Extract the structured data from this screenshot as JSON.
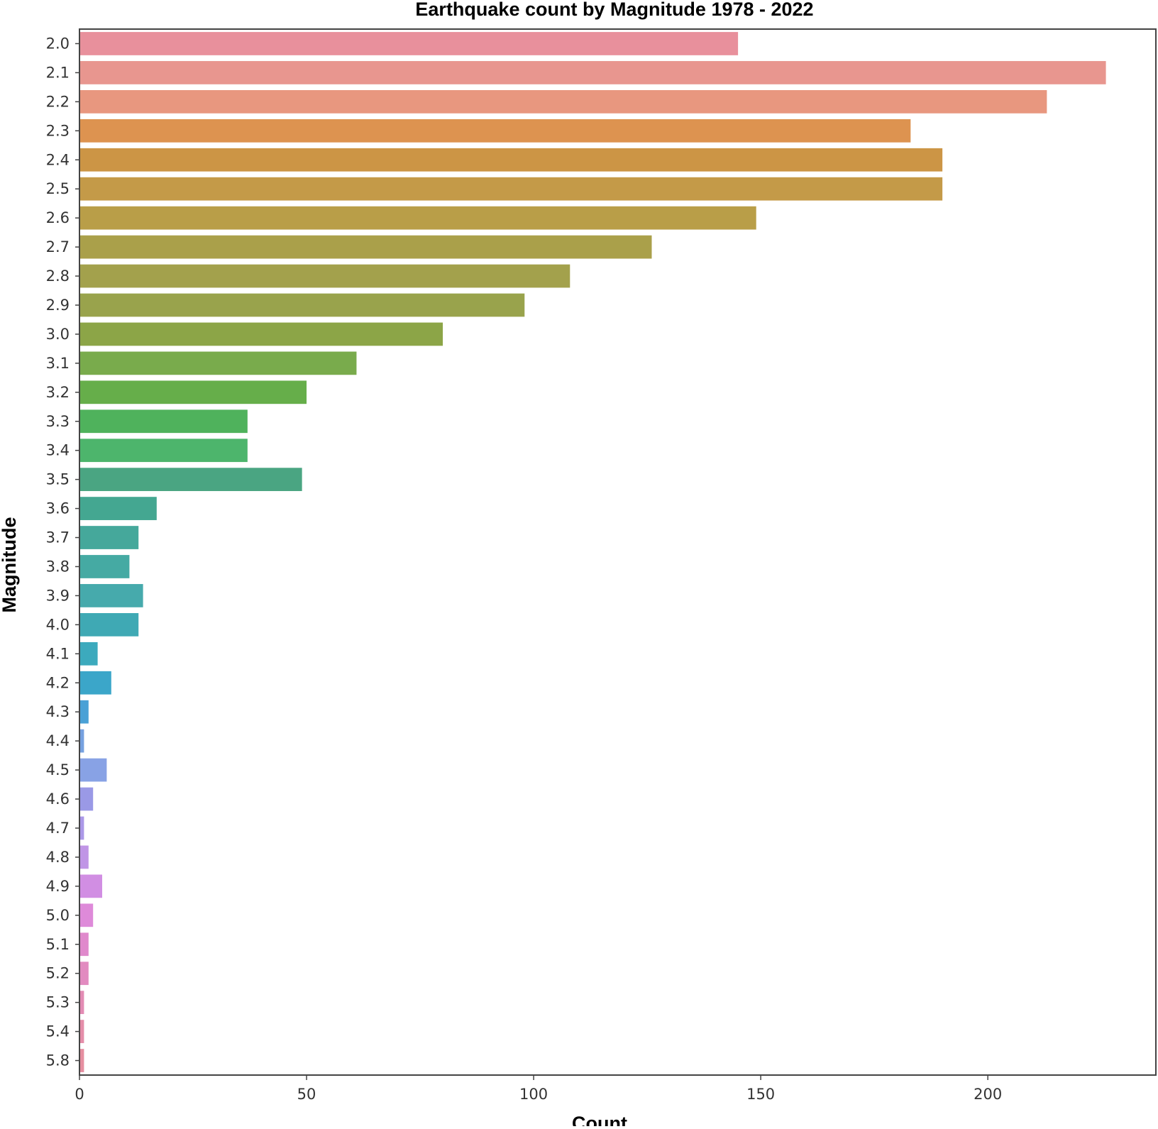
{
  "chart_data": {
    "type": "bar",
    "orientation": "horizontal",
    "title": "Earthquake count by Magnitude 1978 - 2022",
    "xlabel": "Count",
    "ylabel": "Magnitude",
    "xlim": [
      0,
      237
    ],
    "xticks": [
      0,
      50,
      100,
      150,
      200
    ],
    "grid": false,
    "legend": "none",
    "categories": [
      "2.0",
      "2.1",
      "2.2",
      "2.3",
      "2.4",
      "2.5",
      "2.6",
      "2.7",
      "2.8",
      "2.9",
      "3.0",
      "3.1",
      "3.2",
      "3.3",
      "3.4",
      "3.5",
      "3.6",
      "3.7",
      "3.8",
      "3.9",
      "4.0",
      "4.1",
      "4.2",
      "4.3",
      "4.4",
      "4.5",
      "4.6",
      "4.7",
      "4.8",
      "4.9",
      "5.0",
      "5.1",
      "5.2",
      "5.3",
      "5.4",
      "5.8"
    ],
    "values": [
      145,
      226,
      213,
      183,
      190,
      190,
      149,
      126,
      108,
      98,
      80,
      61,
      50,
      37,
      37,
      49,
      17,
      13,
      11,
      14,
      13,
      4,
      7,
      2,
      1,
      6,
      3,
      1,
      2,
      5,
      3,
      2,
      2,
      1,
      1,
      1
    ],
    "colors": [
      "#e8909c",
      "#e8968f",
      "#e8977f",
      "#dd9350",
      "#cc9545",
      "#c49a48",
      "#b99e48",
      "#aaa04a",
      "#a3a14c",
      "#99a34c",
      "#8ca547",
      "#79ab4c",
      "#66ae4a",
      "#4fb25c",
      "#4db56c",
      "#4aa582",
      "#44a791",
      "#45a89b",
      "#45aaa3",
      "#46aaac",
      "#3fa9b4",
      "#3caabd",
      "#3ba6c9",
      "#4aa1d6",
      "#76a1e0",
      "#88a2e5",
      "#9a99e6",
      "#ab98e8",
      "#c095e6",
      "#d18ee3",
      "#de8ad9",
      "#e089cc",
      "#e28bc0",
      "#e38bb4",
      "#e58da9",
      "#e68ea0"
    ]
  }
}
